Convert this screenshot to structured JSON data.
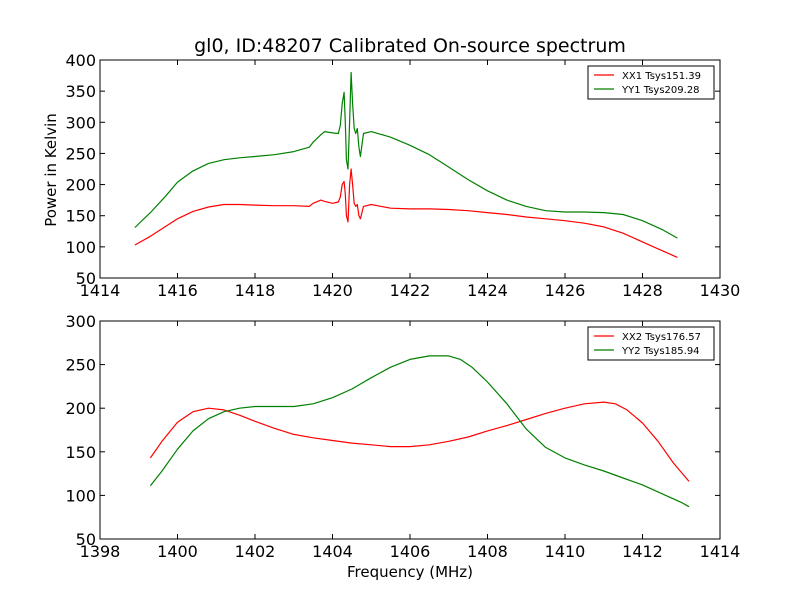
{
  "title": "gl0, ID:48207 Calibrated On-source spectrum",
  "ylabel": "Power in Kelvin",
  "xlabel": "Frequency (MHz)",
  "colors": {
    "red": "#ff0000",
    "green": "#008000"
  },
  "chart_data": [
    {
      "type": "line",
      "title": "gl0, ID:48207 Calibrated On-source spectrum",
      "xlabel": "",
      "ylabel": "Power in Kelvin",
      "xlim": [
        1414,
        1430
      ],
      "ylim": [
        50,
        400
      ],
      "xticks": [
        1414,
        1416,
        1418,
        1420,
        1422,
        1424,
        1426,
        1428,
        1430
      ],
      "yticks": [
        50,
        100,
        150,
        200,
        250,
        300,
        350,
        400
      ],
      "grid": false,
      "legend": "top-right",
      "series": [
        {
          "name": "XX1 Tsys151.39",
          "color": "#ff0000",
          "x": [
            1414.9,
            1415.3,
            1415.7,
            1416.0,
            1416.4,
            1416.8,
            1417.2,
            1417.6,
            1418.0,
            1418.5,
            1419.0,
            1419.4,
            1419.5,
            1419.7,
            1419.8,
            1420.0,
            1420.15,
            1420.2,
            1420.25,
            1420.3,
            1420.33,
            1420.36,
            1420.4,
            1420.44,
            1420.48,
            1420.52,
            1420.56,
            1420.6,
            1420.64,
            1420.68,
            1420.72,
            1420.8,
            1421.0,
            1421.5,
            1422.0,
            1422.5,
            1423.0,
            1423.5,
            1424.0,
            1424.5,
            1425.0,
            1425.5,
            1426.0,
            1426.5,
            1427.0,
            1427.5,
            1428.0,
            1428.5,
            1428.9
          ],
          "y": [
            103,
            117,
            133,
            145,
            157,
            164,
            168,
            168,
            167,
            166,
            166,
            165,
            170,
            175,
            173,
            170,
            172,
            180,
            200,
            205,
            185,
            150,
            140,
            200,
            225,
            200,
            170,
            165,
            168,
            150,
            145,
            165,
            168,
            162,
            161,
            161,
            160,
            158,
            155,
            152,
            148,
            145,
            142,
            138,
            132,
            122,
            108,
            94,
            83
          ]
        },
        {
          "name": "YY1 Tsys209.28",
          "color": "#008000",
          "x": [
            1414.9,
            1415.3,
            1415.7,
            1416.0,
            1416.4,
            1416.8,
            1417.2,
            1417.6,
            1418.0,
            1418.5,
            1419.0,
            1419.4,
            1419.5,
            1419.7,
            1419.8,
            1420.0,
            1420.15,
            1420.2,
            1420.25,
            1420.3,
            1420.33,
            1420.36,
            1420.4,
            1420.44,
            1420.48,
            1420.52,
            1420.56,
            1420.6,
            1420.64,
            1420.68,
            1420.72,
            1420.8,
            1421.0,
            1421.5,
            1422.0,
            1422.5,
            1423.0,
            1423.5,
            1424.0,
            1424.5,
            1425.0,
            1425.5,
            1426.0,
            1426.5,
            1427.0,
            1427.5,
            1428.0,
            1428.5,
            1428.9
          ],
          "y": [
            131,
            155,
            182,
            204,
            222,
            234,
            240,
            243,
            245,
            248,
            253,
            260,
            268,
            280,
            285,
            283,
            282,
            295,
            330,
            348,
            300,
            240,
            225,
            300,
            380,
            330,
            290,
            282,
            290,
            260,
            245,
            282,
            285,
            276,
            263,
            248,
            228,
            208,
            190,
            175,
            165,
            158,
            156,
            156,
            155,
            152,
            142,
            128,
            114
          ]
        }
      ]
    },
    {
      "type": "line",
      "title": "",
      "xlabel": "Frequency (MHz)",
      "ylabel": "",
      "xlim": [
        1398,
        1414
      ],
      "ylim": [
        50,
        300
      ],
      "xticks": [
        1398,
        1400,
        1402,
        1404,
        1406,
        1408,
        1410,
        1412,
        1414
      ],
      "yticks": [
        50,
        100,
        150,
        200,
        250,
        300
      ],
      "grid": false,
      "legend": "top-right",
      "series": [
        {
          "name": "XX2 Tsys176.57",
          "color": "#ff0000",
          "x": [
            1399.3,
            1399.6,
            1400.0,
            1400.4,
            1400.8,
            1401.2,
            1401.6,
            1402.0,
            1402.5,
            1403.0,
            1403.5,
            1404.0,
            1404.5,
            1405.0,
            1405.5,
            1406.0,
            1406.5,
            1407.0,
            1407.5,
            1408.0,
            1408.5,
            1409.0,
            1409.5,
            1410.0,
            1410.5,
            1411.0,
            1411.3,
            1411.6,
            1412.0,
            1412.4,
            1412.8,
            1413.2
          ],
          "y": [
            143,
            162,
            184,
            196,
            200,
            198,
            192,
            185,
            177,
            170,
            166,
            163,
            160,
            158,
            156,
            156,
            158,
            162,
            167,
            174,
            180,
            187,
            194,
            200,
            205,
            207,
            205,
            198,
            183,
            162,
            137,
            116
          ]
        },
        {
          "name": "YY2 Tsys185.94",
          "color": "#008000",
          "x": [
            1399.3,
            1399.6,
            1400.0,
            1400.4,
            1400.8,
            1401.2,
            1401.6,
            1402.0,
            1402.5,
            1403.0,
            1403.5,
            1404.0,
            1404.5,
            1405.0,
            1405.5,
            1406.0,
            1406.5,
            1407.0,
            1407.3,
            1407.6,
            1408.0,
            1408.5,
            1409.0,
            1409.5,
            1410.0,
            1410.5,
            1411.0,
            1411.5,
            1412.0,
            1412.5,
            1413.0,
            1413.2
          ],
          "y": [
            111,
            128,
            153,
            174,
            188,
            196,
            200,
            202,
            202,
            202,
            205,
            212,
            222,
            235,
            247,
            256,
            260,
            260,
            256,
            247,
            230,
            205,
            176,
            155,
            143,
            135,
            128,
            120,
            112,
            102,
            92,
            87
          ]
        }
      ]
    }
  ]
}
